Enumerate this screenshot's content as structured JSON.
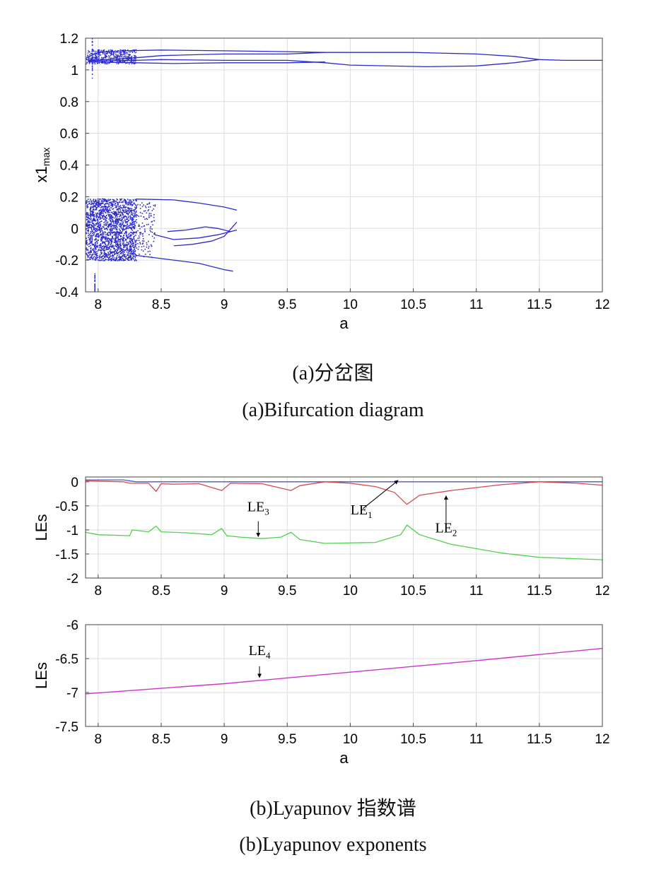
{
  "chart_data": [
    {
      "type": "scatter",
      "xlabel": "a",
      "ylabel": "x1",
      "ylabel_sub": "max",
      "xlim": [
        7.9,
        12
      ],
      "ylim": [
        -0.4,
        1.2
      ],
      "xticks": [
        "8",
        "8.5",
        "9",
        "9.5",
        "10",
        "10.5",
        "11",
        "11.5",
        "12"
      ],
      "yticks": [
        "-0.4",
        "-0.2",
        "0",
        "0.2",
        "0.4",
        "0.6",
        "0.8",
        "1",
        "1.2"
      ],
      "grid": true,
      "color": "#2a2acc",
      "series": [
        {
          "values": [
            [
              7.92,
              1.08
            ],
            [
              8.0,
              1.11
            ],
            [
              8.2,
              1.12
            ],
            [
              8.5,
              1.125
            ],
            [
              9.0,
              1.12
            ],
            [
              9.5,
              1.115
            ],
            [
              9.8,
              1.11
            ],
            [
              10.0,
              1.11
            ],
            [
              10.5,
              1.11
            ],
            [
              11.0,
              1.1
            ],
            [
              11.3,
              1.085
            ],
            [
              11.5,
              1.065
            ],
            [
              11.7,
              1.06
            ],
            [
              12.0,
              1.06
            ]
          ]
        },
        {
          "values": [
            [
              7.92,
              1.06
            ],
            [
              8.2,
              1.07
            ],
            [
              8.5,
              1.09
            ],
            [
              9.0,
              1.1
            ],
            [
              9.5,
              1.1
            ],
            [
              9.8,
              1.11
            ]
          ]
        },
        {
          "values": [
            [
              7.92,
              1.055
            ],
            [
              8.3,
              1.06
            ],
            [
              8.5,
              1.065
            ],
            [
              9.0,
              1.06
            ],
            [
              9.5,
              1.06
            ],
            [
              9.8,
              1.045
            ],
            [
              10.0,
              1.03
            ],
            [
              10.6,
              1.02
            ],
            [
              11.0,
              1.025
            ],
            [
              11.3,
              1.045
            ],
            [
              11.5,
              1.065
            ]
          ]
        },
        {
          "values": [
            [
              7.92,
              1.05
            ],
            [
              8.3,
              1.045
            ],
            [
              8.6,
              1.04
            ],
            [
              9.0,
              1.045
            ],
            [
              9.5,
              1.045
            ],
            [
              9.8,
              1.05
            ]
          ]
        },
        {
          "values": [
            [
              8.3,
              0.185
            ],
            [
              8.6,
              0.18
            ],
            [
              8.8,
              0.16
            ],
            [
              9.0,
              0.135
            ],
            [
              9.1,
              0.115
            ]
          ]
        },
        {
          "values": [
            [
              8.3,
              -0.17
            ],
            [
              8.6,
              -0.2
            ],
            [
              8.8,
              -0.22
            ],
            [
              9.0,
              -0.26
            ],
            [
              9.07,
              -0.27
            ]
          ]
        },
        {
          "values": [
            [
              8.45,
              -0.04
            ],
            [
              8.6,
              -0.07
            ],
            [
              8.8,
              -0.06
            ],
            [
              8.95,
              -0.04
            ],
            [
              9.1,
              -0.01
            ]
          ]
        },
        {
          "values": [
            [
              8.55,
              -0.02
            ],
            [
              8.7,
              -0.01
            ],
            [
              8.85,
              0.01
            ],
            [
              8.95,
              0.0
            ],
            [
              9.05,
              -0.02
            ]
          ]
        },
        {
          "values": [
            [
              8.6,
              -0.11
            ],
            [
              8.75,
              -0.1
            ],
            [
              8.9,
              -0.08
            ],
            [
              9.0,
              -0.05
            ],
            [
              9.1,
              0.04
            ]
          ]
        }
      ],
      "chaos_regions": [
        {
          "x": [
            7.9,
            8.3
          ],
          "y": [
            -0.2,
            0.19
          ],
          "density": 1800
        },
        {
          "x": [
            8.3,
            8.45
          ],
          "y": [
            -0.18,
            0.17
          ],
          "density": 120
        }
      ]
    },
    {
      "type": "line",
      "xlabel": "",
      "ylabel": "LEs",
      "xlim": [
        7.9,
        12
      ],
      "ylim": [
        -2,
        0.1
      ],
      "xticks": [
        "8",
        "8.5",
        "9",
        "9.5",
        "10",
        "10.5",
        "11",
        "11.5",
        "12"
      ],
      "yticks": [
        "-2",
        "-1.5",
        "-1",
        "-0.5",
        "0"
      ],
      "grid": true,
      "series": [
        {
          "color": "#4a56d6",
          "values": [
            [
              7.9,
              0.04
            ],
            [
              8.2,
              0.04
            ],
            [
              8.25,
              0.02
            ],
            [
              8.3,
              0.0
            ],
            [
              12.0,
              0.0
            ]
          ]
        },
        {
          "color": "#d84a4a",
          "values": [
            [
              7.9,
              0.02
            ],
            [
              8.2,
              0.0
            ],
            [
              8.25,
              -0.03
            ],
            [
              8.4,
              -0.03
            ],
            [
              8.46,
              -0.2
            ],
            [
              8.5,
              -0.04
            ],
            [
              8.6,
              -0.05
            ],
            [
              8.8,
              -0.04
            ],
            [
              8.98,
              -0.18
            ],
            [
              9.05,
              -0.03
            ],
            [
              9.3,
              -0.04
            ],
            [
              9.53,
              -0.18
            ],
            [
              9.6,
              -0.08
            ],
            [
              9.8,
              0.0
            ],
            [
              10.0,
              -0.03
            ],
            [
              10.2,
              -0.1
            ],
            [
              10.35,
              -0.22
            ],
            [
              10.45,
              -0.47
            ],
            [
              10.55,
              -0.28
            ],
            [
              10.8,
              -0.18
            ],
            [
              11.2,
              -0.06
            ],
            [
              11.5,
              0.0
            ],
            [
              11.8,
              -0.03
            ],
            [
              12.0,
              -0.07
            ]
          ]
        },
        {
          "color": "#4fd04f",
          "values": [
            [
              7.9,
              -1.05
            ],
            [
              8.0,
              -1.1
            ],
            [
              8.25,
              -1.12
            ],
            [
              8.27,
              -1.0
            ],
            [
              8.4,
              -1.04
            ],
            [
              8.46,
              -0.92
            ],
            [
              8.5,
              -1.04
            ],
            [
              8.7,
              -1.06
            ],
            [
              8.9,
              -1.1
            ],
            [
              8.98,
              -0.97
            ],
            [
              9.02,
              -1.12
            ],
            [
              9.13,
              -1.15
            ],
            [
              9.3,
              -1.18
            ],
            [
              9.45,
              -1.15
            ],
            [
              9.53,
              -1.05
            ],
            [
              9.6,
              -1.2
            ],
            [
              9.8,
              -1.28
            ],
            [
              10.2,
              -1.26
            ],
            [
              10.4,
              -1.1
            ],
            [
              10.45,
              -0.9
            ],
            [
              10.55,
              -1.1
            ],
            [
              10.8,
              -1.3
            ],
            [
              11.2,
              -1.48
            ],
            [
              11.5,
              -1.57
            ],
            [
              12.0,
              -1.62
            ]
          ]
        }
      ],
      "annotations": [
        {
          "text": "LE",
          "sub": "3",
          "x": 9.27,
          "y": -1.17
        },
        {
          "text": "LE",
          "sub": "1",
          "x": 10.38,
          "y": -0.0
        },
        {
          "text": "LE",
          "sub": "2",
          "x": 10.76,
          "y": -0.32
        }
      ]
    },
    {
      "type": "line",
      "xlabel": "a",
      "ylabel": "LEs",
      "xlim": [
        7.9,
        12
      ],
      "ylim": [
        -7.5,
        -6
      ],
      "xticks": [
        "8",
        "8.5",
        "9",
        "9.5",
        "10",
        "10.5",
        "11",
        "11.5",
        "12"
      ],
      "yticks": [
        "-7.5",
        "-7",
        "-6.5",
        "-6"
      ],
      "grid": true,
      "series": [
        {
          "color": "#cc33cc",
          "values": [
            [
              7.9,
              -7.02
            ],
            [
              9.0,
              -6.87
            ],
            [
              10.0,
              -6.7
            ],
            [
              11.0,
              -6.53
            ],
            [
              12.0,
              -6.35
            ]
          ]
        }
      ],
      "annotations": [
        {
          "text": "LE",
          "sub": "4",
          "x": 9.28,
          "y": -6.8
        }
      ]
    }
  ],
  "captions": {
    "a_cn": "(a)分岔图",
    "a_en": "(a)Bifurcation diagram",
    "b_cn": "(b)Lyapunov 指数谱",
    "b_en": "(b)Lyapunov exponents"
  }
}
